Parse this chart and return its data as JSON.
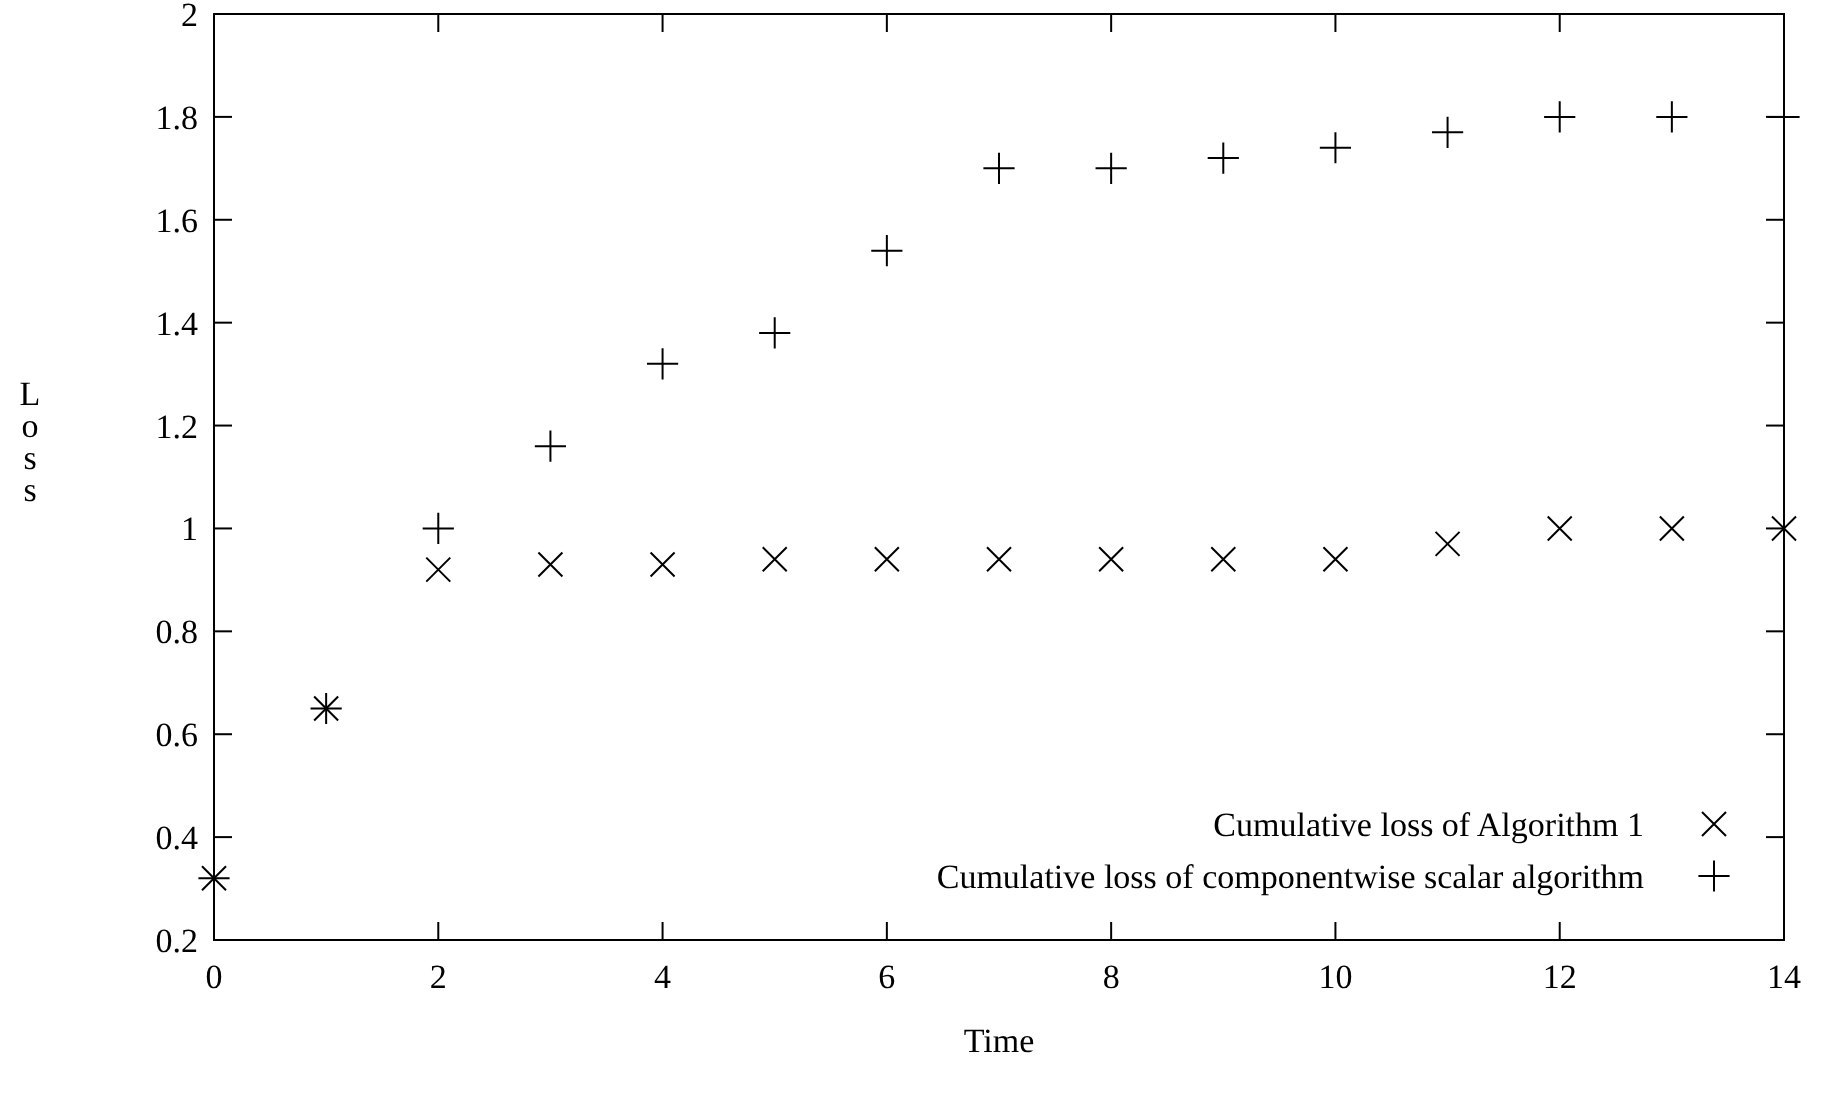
{
  "chart_data": {
    "type": "scatter",
    "xlabel": "Time",
    "ylabel": "Loss",
    "x": [
      0,
      1,
      2,
      3,
      4,
      5,
      6,
      7,
      8,
      9,
      10,
      11,
      12,
      13,
      14
    ],
    "series": [
      {
        "name": "Cumulative loss of Algorithm 1",
        "color": "#000000",
        "marker": "x",
        "values": [
          0.32,
          0.65,
          0.92,
          0.93,
          0.93,
          0.94,
          0.94,
          0.94,
          0.94,
          0.94,
          0.94,
          0.97,
          1,
          1,
          1
        ]
      },
      {
        "name": "Cumulative loss of componentwise scalar algorithm",
        "color": "#000000",
        "marker": "cross",
        "values": [
          0.32,
          0.65,
          1,
          1.16,
          1.32,
          1.38,
          1.54,
          1.7,
          1.7,
          1.72,
          1.74,
          1.77,
          1.8,
          1.8,
          1.8
        ]
      }
    ],
    "xlim": [
      0,
      14
    ],
    "xticks": [
      0,
      2,
      4,
      6,
      8,
      10,
      12,
      14
    ],
    "ylim": [
      0.2,
      2
    ],
    "yticks": [
      0.2,
      0.4,
      0.6,
      0.8,
      1,
      1.2,
      1.4,
      1.6,
      1.8,
      2
    ],
    "grid": false,
    "legend": "bottom right"
  }
}
